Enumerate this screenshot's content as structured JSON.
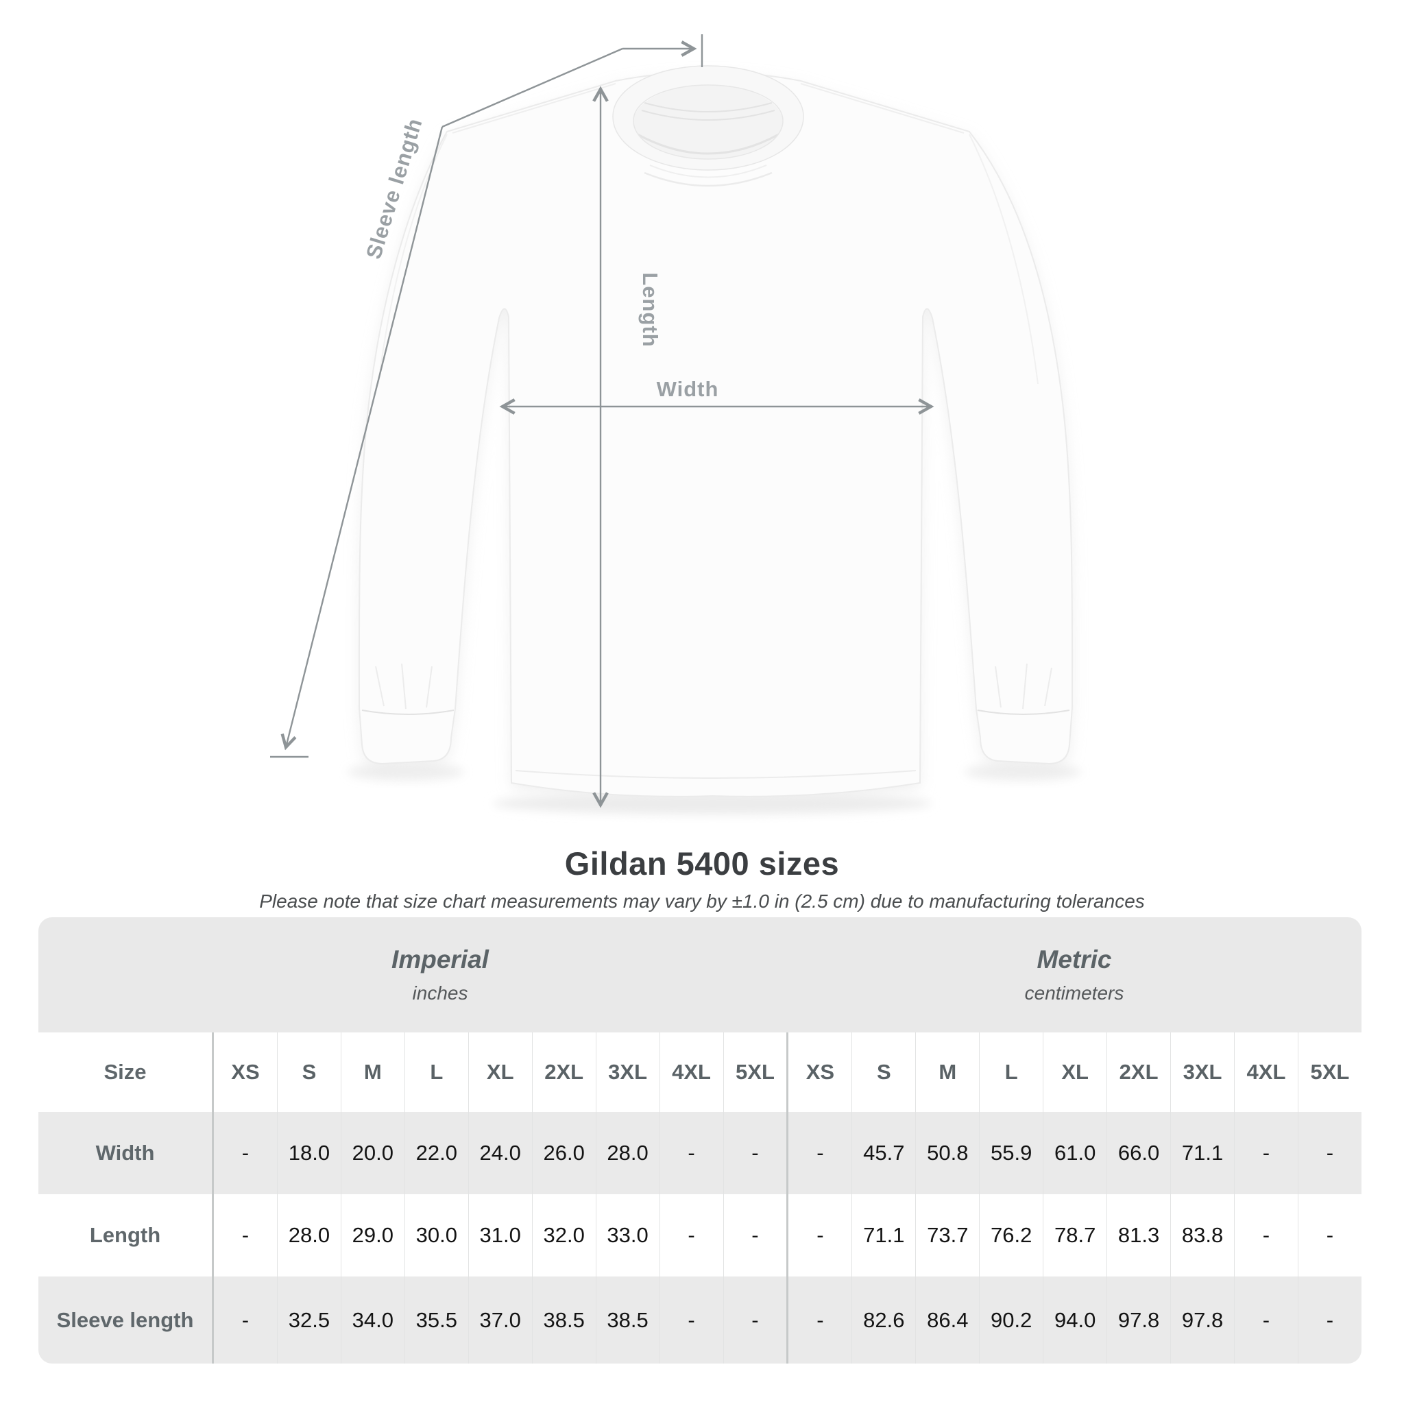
{
  "page": {
    "title": "Gildan 5400 sizes",
    "subtitle": "Please note that size chart measurements may vary by ±1.0 in (2.5 cm) due to manufacturing tolerances"
  },
  "diagram": {
    "product": "white long-sleeve crew-neck shirt",
    "sleeve_length_label": "Sleeve length",
    "length_label": "Length",
    "width_label": "Width"
  },
  "table": {
    "size_header": "Size",
    "groups": [
      {
        "label": "Imperial",
        "unit": "inches",
        "sizes": [
          "XS",
          "S",
          "M",
          "L",
          "XL",
          "2XL",
          "3XL",
          "4XL",
          "5XL"
        ]
      },
      {
        "label": "Metric",
        "unit": "centimeters",
        "sizes": [
          "XS",
          "S",
          "M",
          "L",
          "XL",
          "2XL",
          "3XL",
          "4XL",
          "5XL"
        ]
      }
    ],
    "rows": [
      {
        "label": "Width",
        "values": [
          [
            "-",
            "18.0",
            "20.0",
            "22.0",
            "24.0",
            "26.0",
            "28.0",
            "-",
            "-"
          ],
          [
            "-",
            "45.7",
            "50.8",
            "55.9",
            "61.0",
            "66.0",
            "71.1",
            "-",
            "-"
          ]
        ]
      },
      {
        "label": "Length",
        "values": [
          [
            "-",
            "28.0",
            "29.0",
            "30.0",
            "31.0",
            "32.0",
            "33.0",
            "-",
            "-"
          ],
          [
            "-",
            "71.1",
            "73.7",
            "76.2",
            "78.7",
            "81.3",
            "83.8",
            "-",
            "-"
          ]
        ]
      },
      {
        "label": "Sleeve length",
        "values": [
          [
            "-",
            "32.5",
            "34.0",
            "35.5",
            "37.0",
            "38.5",
            "38.5",
            "-",
            "-"
          ],
          [
            "-",
            "82.6",
            "86.4",
            "90.2",
            "94.0",
            "97.8",
            "97.8",
            "-",
            "-"
          ]
        ]
      }
    ]
  },
  "chart_data": {
    "type": "table",
    "title": "Gildan 5400 sizes",
    "note": "Please note that size chart measurements may vary by ±1.0 in (2.5 cm) due to manufacturing tolerances",
    "columns": [
      "XS",
      "S",
      "M",
      "L",
      "XL",
      "2XL",
      "3XL",
      "4XL",
      "5XL"
    ],
    "unit_groups": [
      {
        "name": "Imperial",
        "unit": "inches"
      },
      {
        "name": "Metric",
        "unit": "centimeters"
      }
    ],
    "rows": [
      {
        "measure": "Width",
        "imperial_in": [
          null,
          18.0,
          20.0,
          22.0,
          24.0,
          26.0,
          28.0,
          null,
          null
        ],
        "metric_cm": [
          null,
          45.7,
          50.8,
          55.9,
          61.0,
          66.0,
          71.1,
          null,
          null
        ]
      },
      {
        "measure": "Length",
        "imperial_in": [
          null,
          28.0,
          29.0,
          30.0,
          31.0,
          32.0,
          33.0,
          null,
          null
        ],
        "metric_cm": [
          null,
          71.1,
          73.7,
          76.2,
          78.7,
          81.3,
          83.8,
          null,
          null
        ]
      },
      {
        "measure": "Sleeve length",
        "imperial_in": [
          null,
          32.5,
          34.0,
          35.5,
          37.0,
          38.5,
          38.5,
          null,
          null
        ],
        "metric_cm": [
          null,
          82.6,
          86.4,
          90.2,
          94.0,
          97.8,
          97.8,
          null,
          null
        ]
      }
    ]
  },
  "colors": {
    "background": "#ffffff",
    "table_header_band": "#e9e9e9",
    "table_stripe_row": "#eaeaea",
    "divider_strong": "#c6c9c9",
    "divider_light": "#e2e3e3",
    "title_text": "#3b3e41",
    "subtitle_text": "#4a4d4f",
    "group_header_text": "#5b6367",
    "size_header_text": "#5a6266",
    "row_label_text": "#5f676b",
    "value_text": "#141414",
    "measurement_line": "#8e9497",
    "measurement_label": "#9aa0a4",
    "shirt_fill": "#fcfcfc"
  }
}
